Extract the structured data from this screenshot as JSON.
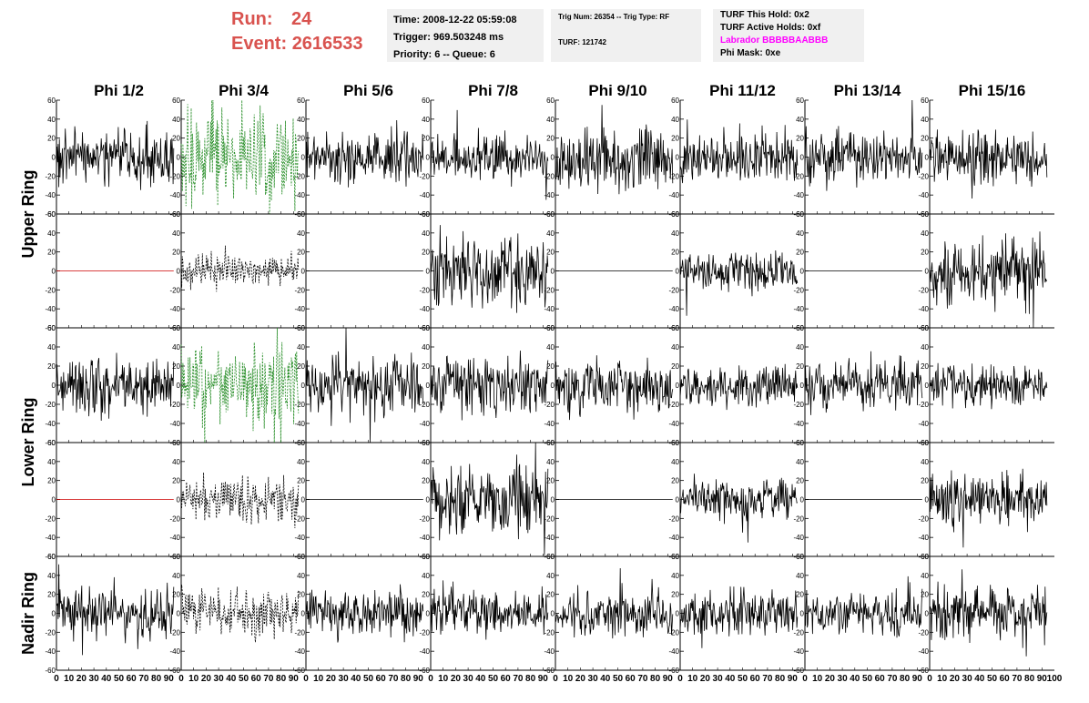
{
  "header": {
    "run_label": "Run:",
    "run_value": "24",
    "event_label": "Event:",
    "event_value": "2616533",
    "time": "Time: 2008-12-22 05:59:08",
    "trigger": "Trigger: 969.503248 ms",
    "priority_queue": "Priority: 6 -- Queue: 6",
    "trig_num_type": "Trig Num: 26354 -- Trig Type: RF",
    "turf": "TURF: 121742",
    "turf_this_hold": "TURF This Hold: 0x2",
    "turf_active_holds": "TURF Active Holds: 0xf",
    "labrador": "Labrador BBBBBAABBB",
    "phi_mask": "Phi Mask: 0xe"
  },
  "colors": {
    "run_text": "#d9534f",
    "labrador_text": "#ff00ff",
    "trace_black": "#000000",
    "trace_green": "#228b22",
    "trace_red": "#cc0000",
    "box_bg": "#f0f0f0"
  },
  "chart_data": {
    "type": "line",
    "columns": [
      "Phi 1/2",
      "Phi 3/4",
      "Phi 5/6",
      "Phi 7/8",
      "Phi 9/10",
      "Phi 11/12",
      "Phi 13/14",
      "Phi 15/16"
    ],
    "ring_labels": [
      "Upper Ring",
      "Lower Ring",
      "Nadir Ring"
    ],
    "rows_per_ring": [
      2,
      2,
      1
    ],
    "ylim": [
      -60,
      60
    ],
    "yticks": [
      -60,
      -40,
      -20,
      0,
      20,
      40,
      60
    ],
    "xlim": [
      0,
      100
    ],
    "xticks": [
      0,
      10,
      20,
      30,
      40,
      50,
      60,
      70,
      80,
      90,
      100
    ],
    "grid": false,
    "panels": [
      {
        "row": 0,
        "col": 0,
        "style": "solid",
        "color": "black",
        "amp": 14,
        "seed": 11
      },
      {
        "row": 0,
        "col": 1,
        "style": "dashed",
        "color": "green",
        "amp": 22,
        "seed": 12
      },
      {
        "row": 0,
        "col": 2,
        "style": "solid",
        "color": "black",
        "amp": 12,
        "seed": 13
      },
      {
        "row": 0,
        "col": 3,
        "style": "solid",
        "color": "black",
        "amp": 12,
        "seed": 14
      },
      {
        "row": 0,
        "col": 4,
        "style": "solid",
        "color": "black",
        "amp": 16,
        "seed": 15
      },
      {
        "row": 0,
        "col": 5,
        "style": "solid",
        "color": "black",
        "amp": 13,
        "seed": 16
      },
      {
        "row": 0,
        "col": 6,
        "style": "solid",
        "color": "black",
        "amp": 14,
        "seed": 17
      },
      {
        "row": 0,
        "col": 7,
        "style": "solid",
        "color": "black",
        "amp": 14,
        "seed": 18
      },
      {
        "row": 1,
        "col": 0,
        "style": "flat",
        "color": "red",
        "amp": 0,
        "seed": 21
      },
      {
        "row": 1,
        "col": 1,
        "style": "dashed",
        "color": "black",
        "amp": 8,
        "seed": 22
      },
      {
        "row": 1,
        "col": 2,
        "style": "flat",
        "color": "black",
        "amp": 0,
        "seed": 23
      },
      {
        "row": 1,
        "col": 3,
        "style": "solid",
        "color": "black",
        "amp": 18,
        "seed": 24
      },
      {
        "row": 1,
        "col": 4,
        "style": "flat",
        "color": "black",
        "amp": 0,
        "seed": 25
      },
      {
        "row": 1,
        "col": 5,
        "style": "solid",
        "color": "black",
        "amp": 10,
        "seed": 26
      },
      {
        "row": 1,
        "col": 6,
        "style": "flat",
        "color": "black",
        "amp": 0,
        "seed": 27
      },
      {
        "row": 1,
        "col": 7,
        "style": "solid",
        "color": "black",
        "amp": 17,
        "seed": 28
      },
      {
        "row": 2,
        "col": 0,
        "style": "solid",
        "color": "black",
        "amp": 14,
        "seed": 31
      },
      {
        "row": 2,
        "col": 1,
        "style": "dashed",
        "color": "green",
        "amp": 20,
        "seed": 32
      },
      {
        "row": 2,
        "col": 2,
        "style": "solid",
        "color": "black",
        "amp": 16,
        "seed": 33
      },
      {
        "row": 2,
        "col": 3,
        "style": "solid",
        "color": "black",
        "amp": 14,
        "seed": 34
      },
      {
        "row": 2,
        "col": 4,
        "style": "solid",
        "color": "black",
        "amp": 14,
        "seed": 35
      },
      {
        "row": 2,
        "col": 5,
        "style": "solid",
        "color": "black",
        "amp": 11,
        "seed": 36
      },
      {
        "row": 2,
        "col": 6,
        "style": "solid",
        "color": "black",
        "amp": 12,
        "seed": 37
      },
      {
        "row": 2,
        "col": 7,
        "style": "solid",
        "color": "black",
        "amp": 10,
        "seed": 38
      },
      {
        "row": 3,
        "col": 0,
        "style": "flat",
        "color": "red",
        "amp": 0,
        "seed": 41
      },
      {
        "row": 3,
        "col": 1,
        "style": "dashed",
        "color": "black",
        "amp": 11,
        "seed": 42
      },
      {
        "row": 3,
        "col": 2,
        "style": "flat",
        "color": "black",
        "amp": 0,
        "seed": 43
      },
      {
        "row": 3,
        "col": 3,
        "style": "solid",
        "color": "black",
        "amp": 17,
        "seed": 44
      },
      {
        "row": 3,
        "col": 4,
        "style": "flat",
        "color": "black",
        "amp": 0,
        "seed": 45
      },
      {
        "row": 3,
        "col": 5,
        "style": "solid",
        "color": "black",
        "amp": 10,
        "seed": 46
      },
      {
        "row": 3,
        "col": 6,
        "style": "flat",
        "color": "black",
        "amp": 0,
        "seed": 47
      },
      {
        "row": 3,
        "col": 7,
        "style": "solid",
        "color": "black",
        "amp": 14,
        "seed": 48
      },
      {
        "row": 4,
        "col": 0,
        "style": "solid",
        "color": "black",
        "amp": 14,
        "seed": 51
      },
      {
        "row": 4,
        "col": 1,
        "style": "dashed",
        "color": "black",
        "amp": 12,
        "seed": 52
      },
      {
        "row": 4,
        "col": 2,
        "style": "solid",
        "color": "black",
        "amp": 11,
        "seed": 53
      },
      {
        "row": 4,
        "col": 3,
        "style": "solid",
        "color": "black",
        "amp": 11,
        "seed": 54
      },
      {
        "row": 4,
        "col": 4,
        "style": "solid",
        "color": "black",
        "amp": 12,
        "seed": 55
      },
      {
        "row": 4,
        "col": 5,
        "style": "solid",
        "color": "black",
        "amp": 11,
        "seed": 56
      },
      {
        "row": 4,
        "col": 6,
        "style": "solid",
        "color": "black",
        "amp": 11,
        "seed": 57
      },
      {
        "row": 4,
        "col": 7,
        "style": "solid",
        "color": "black",
        "amp": 13,
        "seed": 58
      }
    ]
  }
}
